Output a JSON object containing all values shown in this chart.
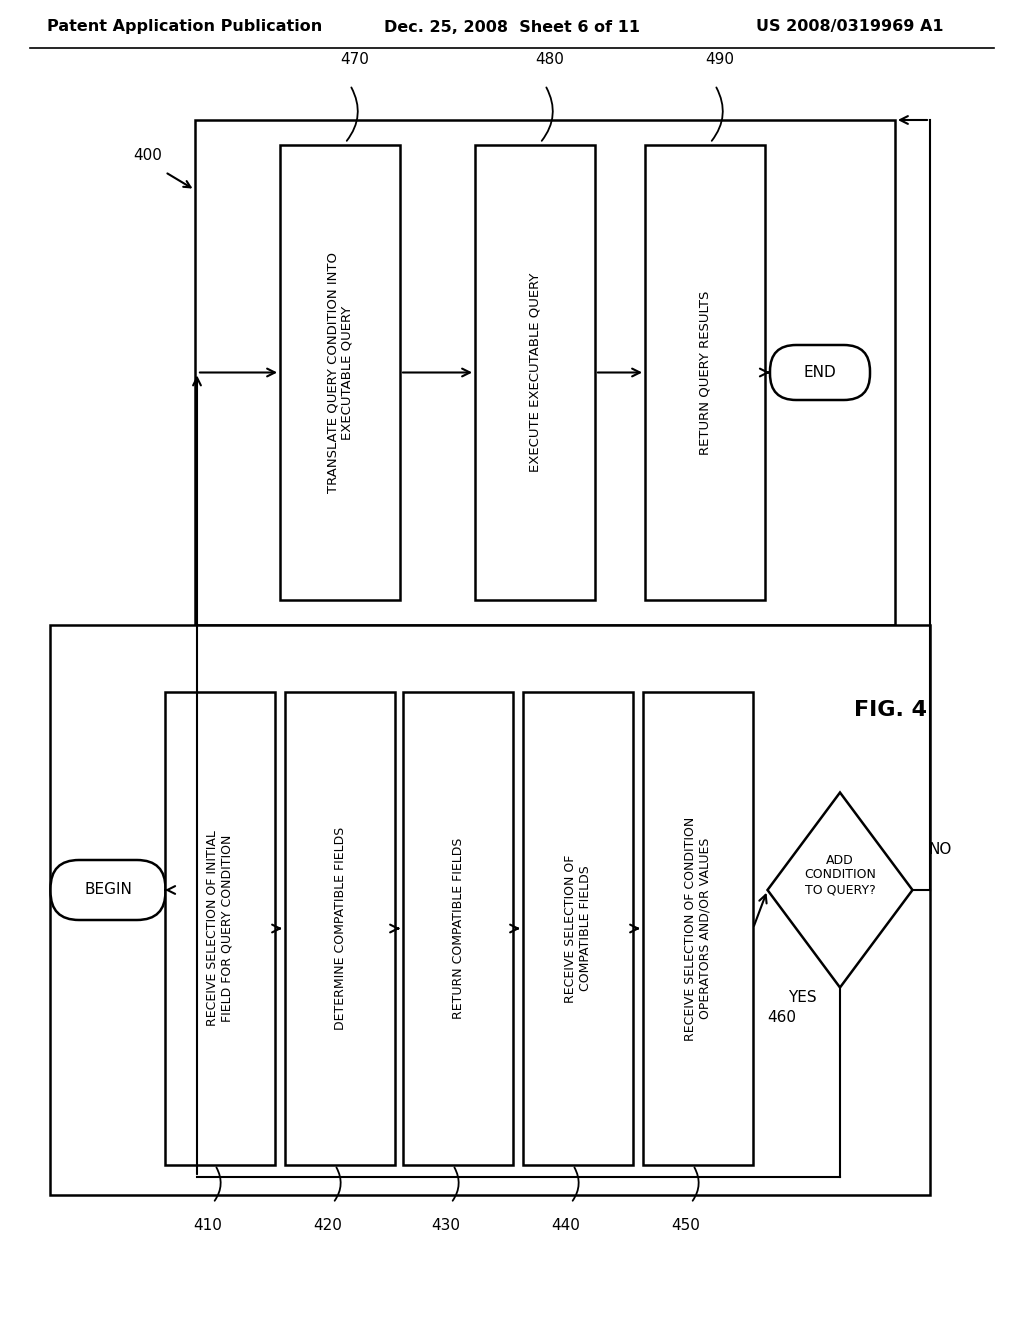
{
  "bg_color": "#ffffff",
  "line_color": "#000000",
  "header_text_left": "Patent Application Publication",
  "header_text_center": "Dec. 25, 2008  Sheet 6 of 11",
  "header_text_right": "US 2008/0319969 A1",
  "fig_label": "FIG. 4",
  "diagram_label": "400",
  "top_boxes": [
    {
      "id": "470",
      "label": "TRANSLATE QUERY CONDITION INTO\nEXECUTABLE QUERY"
    },
    {
      "id": "480",
      "label": "EXECUTE EXECUTABLE QUERY"
    },
    {
      "id": "490",
      "label": "RETURN QUERY RESULTS"
    }
  ],
  "end_label": "END",
  "begin_label": "BEGIN",
  "bottom_boxes": [
    {
      "id": "410",
      "label": "RECEIVE SELECTION OF INITIAL\nFIELD FOR QUERY CONDITION"
    },
    {
      "id": "420",
      "label": "DETERMINE COMPATIBLE FIELDS"
    },
    {
      "id": "430",
      "label": "RETURN COMPATIBLE FIELDS"
    },
    {
      "id": "440",
      "label": "RECEIVE SELECTION OF\nCOMPATIBLE FIELDS"
    },
    {
      "id": "450",
      "label": "RECEIVE SELECTION OF CONDITION\nOPERATORS AND/OR VALUES"
    }
  ],
  "diamond_id": "460",
  "diamond_label": "ADD\nCONDITION\nTO QUERY?",
  "yes_label": "YES",
  "no_label": "NO"
}
